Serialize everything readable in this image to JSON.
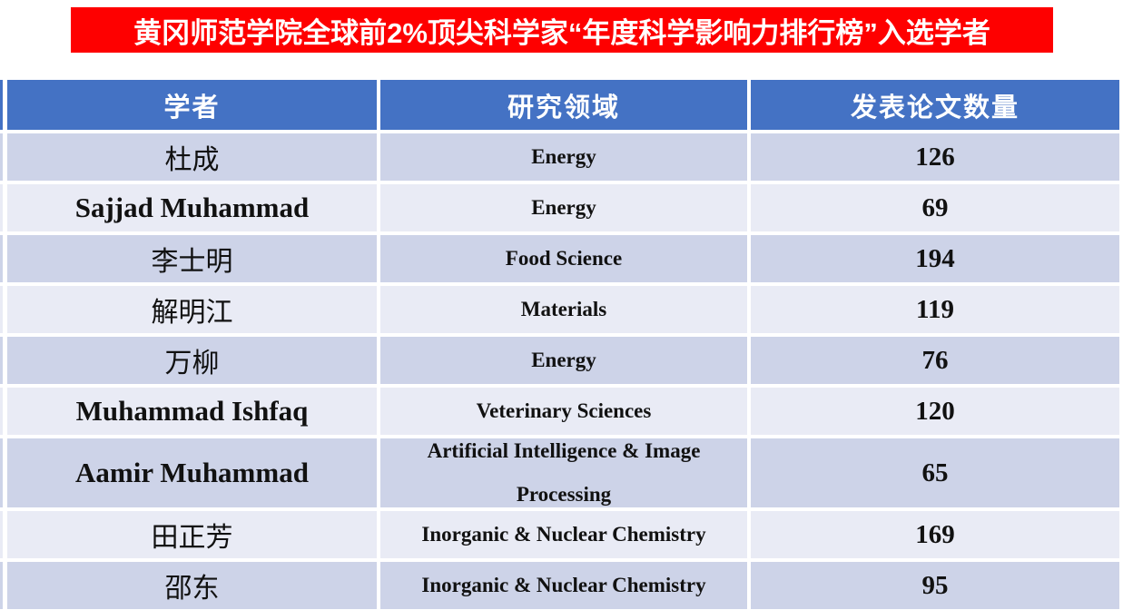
{
  "title": {
    "text": "黄冈师范学院全球前2%顶尖科学家“年度科学影响力排行榜”入选学者",
    "bg_color": "#FE0000",
    "text_color": "#FFFFFF"
  },
  "table": {
    "headers": [
      {
        "label": "学者"
      },
      {
        "label": "研究领域"
      },
      {
        "label": "发表论文数量"
      }
    ],
    "colors": {
      "header_bg": "#4472C4",
      "band_dark": "#CDD3E8",
      "band_light": "#E9EBF5",
      "gap": "#FFFFFF",
      "text": "#111111"
    },
    "rows": [
      {
        "scholar": "杜成",
        "field": "Energy",
        "papers": "126"
      },
      {
        "scholar": "Sajjad Muhammad",
        "field": "Energy",
        "papers": "69"
      },
      {
        "scholar": "李士明",
        "field": "Food Science",
        "papers": "194"
      },
      {
        "scholar": "解明江",
        "field": "Materials",
        "papers": "119"
      },
      {
        "scholar": "万柳",
        "field": "Energy",
        "papers": "76"
      },
      {
        "scholar": "Muhammad Ishfaq",
        "field": "Veterinary Sciences",
        "papers": "120"
      },
      {
        "scholar": "Aamir Muhammad",
        "field": "Artificial Intelligence & Image Processing",
        "papers": "65"
      },
      {
        "scholar": "田正芳",
        "field": "Inorganic & Nuclear Chemistry",
        "papers": "169"
      },
      {
        "scholar": "邵东",
        "field": "Inorganic & Nuclear Chemistry",
        "papers": "95"
      }
    ]
  }
}
